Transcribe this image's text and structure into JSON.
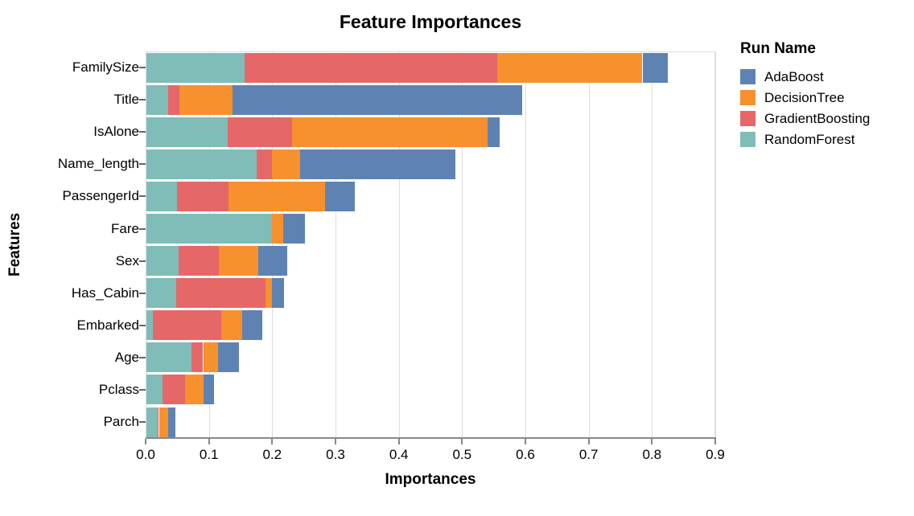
{
  "title": "Feature Importances",
  "axes": {
    "x_title": "Importances",
    "y_title": "Features",
    "x_tick_labels": [
      "0.0",
      "0.1",
      "0.2",
      "0.3",
      "0.4",
      "0.5",
      "0.6",
      "0.7",
      "0.8",
      "0.9"
    ]
  },
  "legend": {
    "title": "Run Name",
    "items": [
      {
        "label": "AdaBoost",
        "color": "#5e83b3"
      },
      {
        "label": "DecisionTree",
        "color": "#f6912e"
      },
      {
        "label": "GradientBoosting",
        "color": "#e66768"
      },
      {
        "label": "RandomForest",
        "color": "#80bcb8"
      }
    ]
  },
  "style": {
    "grid_color": "#dddddd",
    "axis_line_color": "#888888",
    "tick_color": "#666666",
    "background": "#ffffff",
    "text_color": "#000000"
  },
  "chart_data": {
    "type": "bar",
    "orientation": "horizontal",
    "stacked": true,
    "title": "Feature Importances",
    "xlabel": "Importances",
    "ylabel": "Features",
    "xlim": [
      0,
      0.9
    ],
    "x_tick_step": 0.1,
    "grid": true,
    "legend_position": "right",
    "legend_title": "Run Name",
    "categories": [
      "FamilySize",
      "Title",
      "IsAlone",
      "Name_length",
      "PassengerId",
      "Fare",
      "Sex",
      "Has_Cabin",
      "Embarked",
      "Age",
      "Pclass",
      "Parch"
    ],
    "stack_order": [
      "RandomForest",
      "GradientBoosting",
      "DecisionTree",
      "AdaBoost"
    ],
    "series": [
      {
        "name": "RandomForest",
        "color": "#80bcb8",
        "values": [
          0.156,
          0.035,
          0.129,
          0.175,
          0.049,
          0.2,
          0.052,
          0.048,
          0.012,
          0.072,
          0.027,
          0.019
        ]
      },
      {
        "name": "GradientBoosting",
        "color": "#e66768",
        "values": [
          0.399,
          0.018,
          0.102,
          0.025,
          0.082,
          0.0,
          0.064,
          0.141,
          0.107,
          0.019,
          0.035,
          0.002
        ]
      },
      {
        "name": "DecisionTree",
        "color": "#f6912e",
        "values": [
          0.23,
          0.084,
          0.309,
          0.044,
          0.153,
          0.017,
          0.062,
          0.01,
          0.033,
          0.023,
          0.03,
          0.015
        ]
      },
      {
        "name": "AdaBoost",
        "color": "#5e83b3",
        "values": [
          0.04,
          0.458,
          0.019,
          0.245,
          0.046,
          0.035,
          0.046,
          0.02,
          0.032,
          0.034,
          0.016,
          0.011
        ]
      }
    ]
  }
}
